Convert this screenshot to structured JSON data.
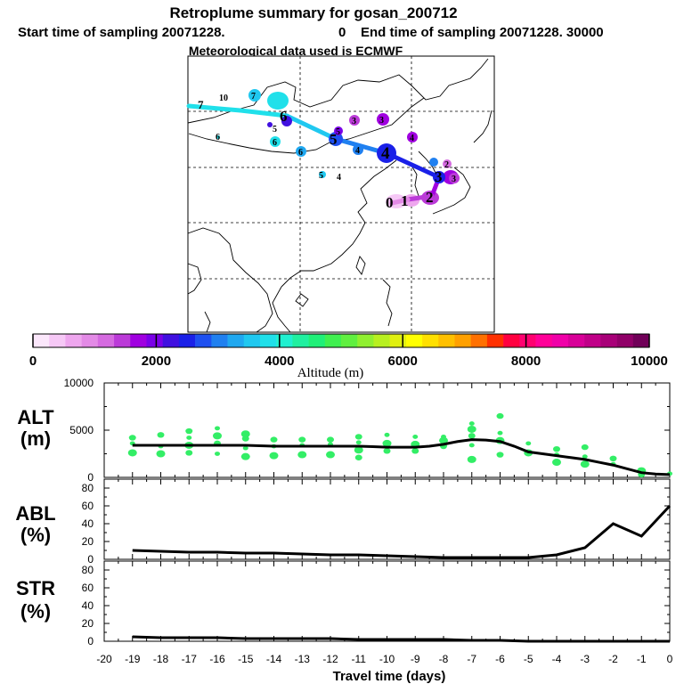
{
  "header": {
    "title": "Retroplume summary for gosan_200712",
    "start_label": "Start time of sampling 20071228.",
    "start_value": "0",
    "end_label": "End time of sampling 20071228. 30000",
    "met_label": "Meteorological data used is ECMWF"
  },
  "colors": {
    "scale": [
      "#fbe7fb",
      "#f6c8f6",
      "#eea6ee",
      "#e38ae6",
      "#d56ae0",
      "#bb3ad8",
      "#a000e0",
      "#7a00e8",
      "#4010e0",
      "#1a20e8",
      "#1e50f0",
      "#2080f0",
      "#20a8f0",
      "#20c8f0",
      "#20e0ea",
      "#20f0d0",
      "#20f0a0",
      "#20f078",
      "#40f050",
      "#60f040",
      "#90f030",
      "#b8f020",
      "#e0f010",
      "#ffff00",
      "#ffe000",
      "#ffc000",
      "#ffa000",
      "#ff7000",
      "#ff3000",
      "#ff0040",
      "#ff0070",
      "#ff0098",
      "#f000a8",
      "#d80098",
      "#c00088",
      "#a80078",
      "#900068",
      "#700058"
    ],
    "green_marker": "#33ee66",
    "line": "#000000"
  },
  "colorbar": {
    "ticks": [
      "0",
      "2000",
      "4000",
      "6000",
      "8000",
      "10000"
    ],
    "label": "Altitude (m)"
  },
  "map": {
    "trajectory_labels": [
      "0",
      "1",
      "2",
      "3",
      "4",
      "5",
      "6",
      "7"
    ],
    "cluster_labels": [
      "0",
      "1",
      "2",
      "3",
      "3",
      "4",
      "4",
      "5",
      "5",
      "6",
      "6",
      "7",
      "10",
      "7",
      "6",
      "6",
      "5",
      "4",
      "3"
    ]
  },
  "chart_data": [
    {
      "type": "scatter",
      "panel": "ALT",
      "label_top": "ALT",
      "label_bottom": "(m)",
      "ylim": [
        0,
        10000
      ],
      "yticks": [
        "10000",
        "5000",
        "0"
      ],
      "x": [
        0,
        -0.5,
        -1,
        -1.5,
        -2,
        -2.5,
        -3,
        -3.5,
        -4,
        -4.5,
        -5,
        -5.5,
        -6,
        -6.5,
        -7,
        -7.5,
        -8,
        -8.5,
        -9,
        -9.5,
        -10,
        -10.5,
        -11,
        -11.5,
        -12,
        -12.5,
        -13,
        -13.5,
        -14,
        -14.5,
        -15,
        -15.5,
        -16,
        -16.5,
        -17,
        -17.5,
        -18,
        -18.5,
        -19
      ],
      "mean_altitude": [
        300,
        350,
        500,
        900,
        1300,
        1600,
        1900,
        2100,
        2300,
        2500,
        2700,
        3300,
        3800,
        3950,
        4000,
        3800,
        3500,
        3300,
        3200,
        3200,
        3200,
        3250,
        3300,
        3300,
        3300,
        3300,
        3300,
        3300,
        3300,
        3350,
        3400,
        3400,
        3400,
        3400,
        3400,
        3400,
        3400,
        3400,
        3400
      ],
      "scatter_points": [
        {
          "x": 0,
          "y": 400
        },
        {
          "x": -1,
          "y": 300
        },
        {
          "x": -1,
          "y": 700
        },
        {
          "x": -2,
          "y": 1400
        },
        {
          "x": -2,
          "y": 2000
        },
        {
          "x": -3,
          "y": 1400
        },
        {
          "x": -3,
          "y": 2200
        },
        {
          "x": -3,
          "y": 3200
        },
        {
          "x": -4,
          "y": 1600
        },
        {
          "x": -4,
          "y": 2400
        },
        {
          "x": -4,
          "y": 3000
        },
        {
          "x": -5,
          "y": 2600
        },
        {
          "x": -5,
          "y": 3600
        },
        {
          "x": -6,
          "y": 2400
        },
        {
          "x": -6,
          "y": 3900
        },
        {
          "x": -6,
          "y": 4700
        },
        {
          "x": -6,
          "y": 6500
        },
        {
          "x": -7,
          "y": 1900
        },
        {
          "x": -7,
          "y": 3400
        },
        {
          "x": -7,
          "y": 4400
        },
        {
          "x": -7,
          "y": 5100
        },
        {
          "x": -7,
          "y": 5700
        },
        {
          "x": -8,
          "y": 3300
        },
        {
          "x": -8,
          "y": 3900
        },
        {
          "x": -8,
          "y": 4300
        },
        {
          "x": -9,
          "y": 2800
        },
        {
          "x": -9,
          "y": 3500
        },
        {
          "x": -9,
          "y": 4300
        },
        {
          "x": -10,
          "y": 2800
        },
        {
          "x": -10,
          "y": 3600
        },
        {
          "x": -10,
          "y": 4500
        },
        {
          "x": -11,
          "y": 2100
        },
        {
          "x": -11,
          "y": 2900
        },
        {
          "x": -11,
          "y": 3700
        },
        {
          "x": -11,
          "y": 4300
        },
        {
          "x": -12,
          "y": 2400
        },
        {
          "x": -12,
          "y": 3500
        },
        {
          "x": -12,
          "y": 4000
        },
        {
          "x": -13,
          "y": 2400
        },
        {
          "x": -13,
          "y": 3400
        },
        {
          "x": -13,
          "y": 4000
        },
        {
          "x": -14,
          "y": 2300
        },
        {
          "x": -14,
          "y": 3300
        },
        {
          "x": -14,
          "y": 4000
        },
        {
          "x": -15,
          "y": 2200
        },
        {
          "x": -15,
          "y": 3100
        },
        {
          "x": -15,
          "y": 4100
        },
        {
          "x": -15,
          "y": 4600
        },
        {
          "x": -16,
          "y": 2500
        },
        {
          "x": -16,
          "y": 3600
        },
        {
          "x": -16,
          "y": 4400
        },
        {
          "x": -16,
          "y": 5200
        },
        {
          "x": -17,
          "y": 2600
        },
        {
          "x": -17,
          "y": 3400
        },
        {
          "x": -17,
          "y": 4200
        },
        {
          "x": -17,
          "y": 4900
        },
        {
          "x": -18,
          "y": 2500
        },
        {
          "x": -18,
          "y": 3300
        },
        {
          "x": -18,
          "y": 4500
        },
        {
          "x": -19,
          "y": 2600
        },
        {
          "x": -19,
          "y": 3600
        },
        {
          "x": -19,
          "y": 4200
        }
      ]
    },
    {
      "type": "line",
      "panel": "ABL",
      "label_top": "ABL",
      "label_bottom": "(%)",
      "ylim": [
        0,
        90
      ],
      "yticks": [
        "80",
        "60",
        "40",
        "20",
        "0"
      ],
      "x": [
        0,
        -1,
        -2,
        -3,
        -4,
        -5,
        -6,
        -7,
        -8,
        -9,
        -10,
        -11,
        -12,
        -13,
        -14,
        -15,
        -16,
        -17,
        -18,
        -19
      ],
      "values": [
        60,
        26,
        40,
        13,
        5,
        2,
        2,
        2,
        2,
        3,
        4,
        5,
        5,
        6,
        7,
        7,
        8,
        8,
        9,
        10
      ]
    },
    {
      "type": "line",
      "panel": "STR",
      "label_top": "STR",
      "label_bottom": "(%)",
      "ylim": [
        0,
        90
      ],
      "yticks": [
        "80",
        "60",
        "40",
        "20",
        "0"
      ],
      "x": [
        0,
        -1,
        -2,
        -3,
        -4,
        -5,
        -6,
        -7,
        -8,
        -9,
        -10,
        -11,
        -12,
        -13,
        -14,
        -15,
        -16,
        -17,
        -18,
        -19
      ],
      "values": [
        0,
        0,
        0,
        0,
        0,
        0,
        1,
        1,
        2,
        2,
        2,
        2,
        3,
        3,
        3,
        3,
        4,
        4,
        4,
        5
      ]
    }
  ],
  "xaxis": {
    "ticks": [
      "-20",
      "-19",
      "-18",
      "-17",
      "-16",
      "-15",
      "-14",
      "-13",
      "-12",
      "-11",
      "-10",
      "-9",
      "-8",
      "-7",
      "-6",
      "-5",
      "-4",
      "-3",
      "-2",
      "-1",
      "0"
    ],
    "label": "Travel time (days)"
  }
}
